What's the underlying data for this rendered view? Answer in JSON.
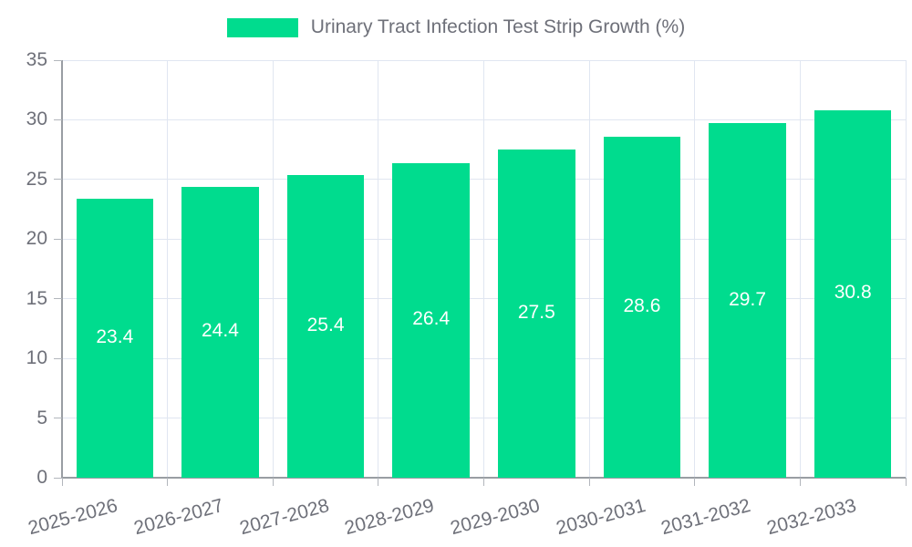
{
  "legend": {
    "label": "Urinary Tract Infection Test Strip Growth (%)"
  },
  "chart_data": {
    "type": "bar",
    "title": "Urinary Tract Infection Test Strip Growth (%)",
    "series_name": "Urinary Tract Infection Test Strip Growth (%)",
    "categories": [
      "2025-2026",
      "2026-2027",
      "2027-2028",
      "2028-2029",
      "2029-2030",
      "2030-2031",
      "2031-2032",
      "2032-2033"
    ],
    "values": [
      23.4,
      24.4,
      25.4,
      26.4,
      27.5,
      28.6,
      29.7,
      30.8
    ],
    "value_labels": [
      "23.4",
      "24.4",
      "25.4",
      "26.4",
      "27.5",
      "28.6",
      "29.7",
      "30.8"
    ],
    "xlabel": "",
    "ylabel": "",
    "ylim": [
      0,
      35
    ],
    "ytick_step": 5,
    "yticks": [
      0,
      5,
      10,
      15,
      20,
      25,
      30,
      35
    ],
    "grid": true,
    "legend_position": "top-center",
    "x_label_rotation_deg": -15,
    "bar_width_fraction": 0.73,
    "colors": {
      "bar": "#00DC8E",
      "grid": "#E0E6F1",
      "axis": "#999DA3",
      "tick": "#B2B6BC",
      "text": "#6E7079",
      "value_label": "#FFFFFF",
      "background": "#FFFFFF"
    }
  }
}
